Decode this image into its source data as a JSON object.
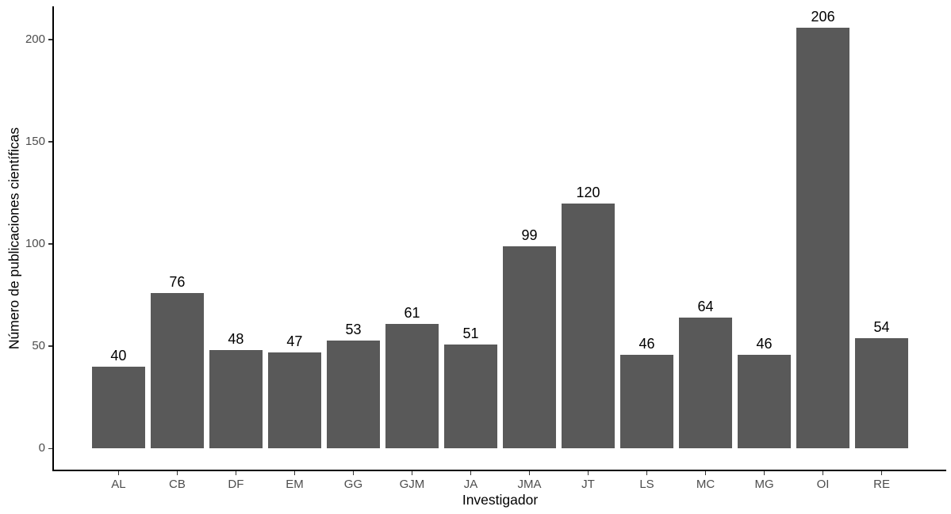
{
  "chart_data": {
    "type": "bar",
    "title": "",
    "xlabel": "Investigador",
    "ylabel": "Número de publicaciones científicas",
    "categories": [
      "AL",
      "CB",
      "DF",
      "EM",
      "GG",
      "GJM",
      "JA",
      "JMA",
      "JT",
      "LS",
      "MC",
      "MG",
      "OI",
      "RE"
    ],
    "values": [
      40,
      76,
      48,
      47,
      53,
      61,
      51,
      99,
      120,
      46,
      64,
      46,
      206,
      54
    ],
    "bar_value_labels": [
      "40",
      "76",
      "48",
      "47",
      "53",
      "61",
      "51",
      "99",
      "120",
      "46",
      "64",
      "46",
      "206",
      "54"
    ],
    "yticks": [
      0,
      50,
      100,
      150,
      200
    ],
    "ylim": [
      0,
      206
    ],
    "y_expand_mult": 0.05,
    "x_expand_add": 0.6,
    "bar_width_ratio": 0.9,
    "grid": false,
    "legend": "none",
    "colors": {
      "background": "#FFFFFF",
      "bar_fill": "#595959",
      "axis_line": "#000000",
      "tick_mark": "#333333",
      "tick_label": "#4D4D4D",
      "axis_title": "#000000",
      "value_label": "#000000"
    }
  }
}
